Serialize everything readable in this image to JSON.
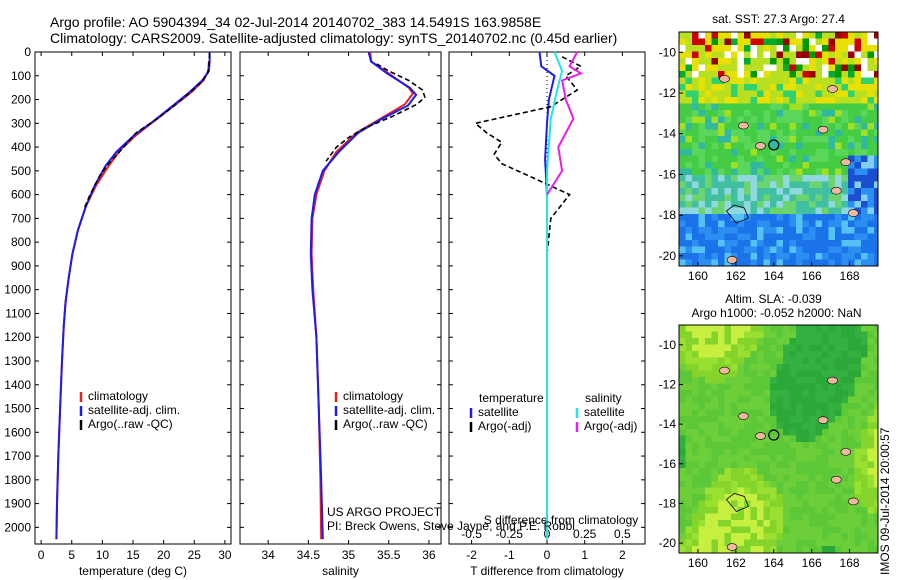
{
  "header": {
    "line1": "Argo profile: AO 5904394_34 02-Jul-2014 20140702_383 14.5491S 163.9858E",
    "line2": "Climatology: CARS2009. Satellite-adjusted climatology: synTS_20140702.nc (0.45d earlier)"
  },
  "credits": {
    "project": "US ARGO PROJECT",
    "pi": "PI: Breck Owens, Steve Jayne, and P.E. Robbi"
  },
  "stamp": "IMOS 09-Jul-2014 20:00:57",
  "colors": {
    "climatology": "#e8201e",
    "satellite": "#1c1cf0",
    "argo": "#000000",
    "sat_sal": "#22e5e5",
    "argo_sal": "#e81ee8"
  },
  "chart_data": [
    {
      "type": "line",
      "id": "temperature",
      "xlabel": "temperature (deg C)",
      "ylabel": "",
      "xlim": [
        -1,
        31
      ],
      "ylim": [
        2070,
        0
      ],
      "xticks": [
        0,
        5,
        10,
        15,
        20,
        25,
        30
      ],
      "yticks": [
        0,
        100,
        200,
        300,
        400,
        500,
        600,
        700,
        800,
        900,
        1000,
        1100,
        1200,
        1300,
        1400,
        1500,
        1600,
        1700,
        1800,
        1900,
        2000
      ],
      "legend": [
        "climatology",
        "satellite-adj. clim.",
        "Argo(..raw -QC)"
      ],
      "series": [
        {
          "name": "climatology",
          "color": "#e8201e",
          "dash": "",
          "points": [
            [
              27.4,
              40
            ],
            [
              27.3,
              80
            ],
            [
              26.5,
              120
            ],
            [
              24.5,
              170
            ],
            [
              21.5,
              230
            ],
            [
              18.5,
              290
            ],
            [
              15.5,
              350
            ],
            [
              13,
              410
            ],
            [
              11,
              480
            ],
            [
              9,
              560
            ],
            [
              7.3,
              650
            ],
            [
              6,
              750
            ],
            [
              5.1,
              850
            ],
            [
              4.5,
              950
            ],
            [
              4.0,
              1050
            ],
            [
              3.7,
              1150
            ],
            [
              3.4,
              1300
            ],
            [
              3.1,
              1500
            ],
            [
              2.8,
              1700
            ],
            [
              2.6,
              1900
            ],
            [
              2.5,
              2050
            ]
          ]
        },
        {
          "name": "satellite-adj. clim.",
          "color": "#1c1cf0",
          "dash": "",
          "points": [
            [
              27.5,
              0
            ],
            [
              27.5,
              40
            ],
            [
              27.4,
              80
            ],
            [
              26.3,
              120
            ],
            [
              24.2,
              170
            ],
            [
              21.3,
              230
            ],
            [
              18.4,
              290
            ],
            [
              15.2,
              350
            ],
            [
              12.3,
              420
            ],
            [
              10.5,
              480
            ],
            [
              8.8,
              560
            ],
            [
              7.3,
              650
            ],
            [
              6,
              750
            ],
            [
              5.1,
              850
            ],
            [
              4.5,
              950
            ],
            [
              4.0,
              1050
            ],
            [
              3.7,
              1150
            ],
            [
              3.4,
              1300
            ],
            [
              3.1,
              1500
            ],
            [
              2.8,
              1700
            ],
            [
              2.6,
              1900
            ],
            [
              2.5,
              2050
            ]
          ]
        },
        {
          "name": "Argo(..raw -QC)",
          "color": "#000000",
          "dash": "5 3",
          "points": [
            [
              27.5,
              5
            ],
            [
              27.4,
              60
            ],
            [
              27.2,
              90
            ],
            [
              26.4,
              120
            ],
            [
              24.8,
              160
            ],
            [
              22,
              220
            ],
            [
              19,
              280
            ],
            [
              15.5,
              340
            ],
            [
              14.2,
              380
            ],
            [
              12.8,
              420
            ],
            [
              11,
              470
            ],
            [
              9.6,
              520
            ],
            [
              8,
              600
            ],
            [
              7,
              660
            ]
          ]
        }
      ]
    },
    {
      "type": "line",
      "id": "salinity",
      "xlabel": "salinity",
      "ylabel": "",
      "xlim": [
        33.65,
        36.15
      ],
      "ylim": [
        2070,
        0
      ],
      "xticks": [
        34,
        34.5,
        35,
        35.5,
        36
      ],
      "legend": [
        "climatology",
        "satellite-adj. clim.",
        "Argo(..raw -QC)"
      ],
      "series": [
        {
          "name": "climatology",
          "color": "#e8201e",
          "dash": "",
          "points": [
            [
              35.27,
              0
            ],
            [
              35.28,
              40
            ],
            [
              35.5,
              90
            ],
            [
              35.75,
              150
            ],
            [
              35.8,
              175
            ],
            [
              35.7,
              220
            ],
            [
              35.4,
              280
            ],
            [
              35.1,
              340
            ],
            [
              34.85,
              420
            ],
            [
              34.7,
              500
            ],
            [
              34.6,
              600
            ],
            [
              34.55,
              700
            ],
            [
              34.54,
              850
            ],
            [
              34.56,
              1000
            ],
            [
              34.6,
              1200
            ],
            [
              34.63,
              1500
            ],
            [
              34.65,
              1800
            ],
            [
              34.66,
              2050
            ]
          ]
        },
        {
          "name": "satellite-adj. clim.",
          "color": "#1c1cf0",
          "dash": "",
          "points": [
            [
              35.25,
              0
            ],
            [
              35.28,
              40
            ],
            [
              35.48,
              90
            ],
            [
              35.76,
              150
            ],
            [
              35.84,
              180
            ],
            [
              35.74,
              225
            ],
            [
              35.42,
              280
            ],
            [
              35.12,
              340
            ],
            [
              34.88,
              420
            ],
            [
              34.68,
              500
            ],
            [
              34.58,
              600
            ],
            [
              34.54,
              700
            ],
            [
              34.53,
              850
            ],
            [
              34.55,
              1000
            ],
            [
              34.6,
              1200
            ],
            [
              34.63,
              1500
            ],
            [
              34.66,
              1800
            ],
            [
              34.68,
              2050
            ]
          ]
        },
        {
          "name": "Argo(..raw -QC)",
          "color": "#000000",
          "dash": "5 3",
          "points": [
            [
              35.35,
              50
            ],
            [
              35.5,
              80
            ],
            [
              35.75,
              120
            ],
            [
              35.92,
              160
            ],
            [
              35.95,
              190
            ],
            [
              35.85,
              220
            ],
            [
              35.55,
              270
            ],
            [
              35.2,
              320
            ],
            [
              35,
              360
            ],
            [
              34.85,
              400
            ],
            [
              34.72,
              460
            ]
          ]
        }
      ]
    },
    {
      "type": "line",
      "id": "difference",
      "xlabel": "T difference from climatology",
      "ylabel": "",
      "top_axis_label": "S difference from climatology",
      "xlim": [
        -2.6,
        2.6
      ],
      "ylim": [
        2070,
        0
      ],
      "xticks": [
        -2,
        -1,
        0,
        1,
        2
      ],
      "top_xticks": [
        -0.5,
        -0.25,
        0,
        0.25,
        0.5
      ],
      "legend": [
        "temperature",
        "satellite",
        "Argo(-adj)",
        "salinity",
        "satellite",
        "Argo(-adj)"
      ],
      "series": [
        {
          "name": "T satellite",
          "color": "#1c1cf0",
          "dash": "",
          "points": [
            [
              -0.2,
              0
            ],
            [
              -0.15,
              60
            ],
            [
              0.2,
              100
            ],
            [
              0.05,
              200
            ],
            [
              0,
              300
            ],
            [
              -0.05,
              450
            ],
            [
              0,
              600
            ],
            [
              0,
              800
            ],
            [
              0,
              2050
            ]
          ]
        },
        {
          "name": "T Argo(-adj)",
          "color": "#000000",
          "dash": "5 3",
          "points": [
            [
              0.4,
              20
            ],
            [
              0.9,
              60
            ],
            [
              0.5,
              100
            ],
            [
              0.8,
              160
            ],
            [
              0.1,
              230
            ],
            [
              -1.9,
              300
            ],
            [
              -1.6,
              340
            ],
            [
              -1.2,
              380
            ],
            [
              -1.4,
              430
            ],
            [
              -1.2,
              470
            ],
            [
              -0.5,
              520
            ],
            [
              0.6,
              600
            ],
            [
              0.1,
              700
            ],
            [
              0,
              850
            ]
          ]
        },
        {
          "name": "S satellite",
          "color": "#22e5e5",
          "dash": "",
          "points": [
            [
              0.2,
              0
            ],
            [
              0.4,
              80
            ],
            [
              0.3,
              140
            ],
            [
              0.1,
              280
            ],
            [
              0,
              500
            ],
            [
              0,
              800
            ],
            [
              0,
              2050
            ]
          ]
        },
        {
          "name": "S Argo(-adj)",
          "color": "#e81ee8",
          "dash": "",
          "points": [
            [
              0.8,
              0
            ],
            [
              0.6,
              60
            ],
            [
              0.9,
              90
            ],
            [
              0.4,
              120
            ],
            [
              0.5,
              200
            ],
            [
              0.7,
              280
            ],
            [
              0.3,
              400
            ],
            [
              0.4,
              500
            ],
            [
              0,
              600
            ]
          ]
        }
      ]
    },
    {
      "type": "heatmap",
      "id": "sst_map",
      "title": "sat. SST: 27.3 Argo: 27.4",
      "xlim": [
        159,
        169.5
      ],
      "ylim": [
        -20.5,
        -9
      ],
      "xticks": [
        160,
        162,
        164,
        166,
        168
      ],
      "yticks": [
        -10,
        -12,
        -14,
        -16,
        -18,
        -20
      ],
      "marker": [
        164,
        -14.55
      ]
    },
    {
      "type": "heatmap",
      "id": "sla_map",
      "title": "Altim. SLA: -0.039",
      "subtitle": "Argo h1000: -0.052 h2000: NaN",
      "xlim": [
        159,
        169.5
      ],
      "ylim": [
        -20.5,
        -9
      ],
      "xticks": [
        160,
        162,
        164,
        166,
        168
      ],
      "yticks": [
        -10,
        -12,
        -14,
        -16,
        -18,
        -20
      ],
      "marker": [
        164,
        -14.55
      ]
    }
  ]
}
